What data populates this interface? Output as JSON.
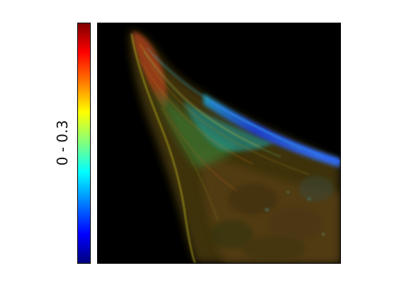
{
  "colorbar": {
    "range_label": "0 - 0.3",
    "colormap": "jet",
    "min": 0,
    "max": 0.3
  },
  "image": {
    "subject": "fluorescence-micrograph",
    "background_color": "#000000"
  }
}
